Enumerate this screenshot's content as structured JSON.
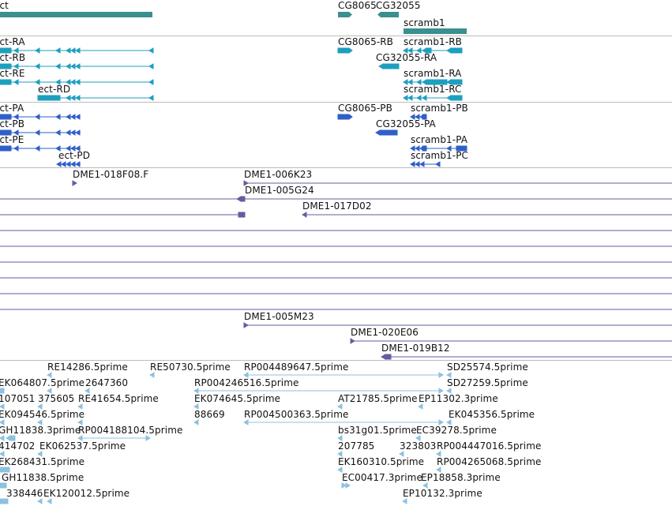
{
  "colors": {
    "gene": "#3a8f8f",
    "transcript1": "#1d9fbf",
    "transcript2": "#2f5fc8",
    "clone": "#6a5aa0",
    "est": "#8ec0e0",
    "divider": "#bcbcbc"
  },
  "tracks": {
    "genes": {
      "labels": [
        "ect",
        "CG8065",
        "CG32055",
        "scramb1"
      ],
      "features": [
        {
          "name": "ect",
          "start": -0.5,
          "end": 193,
          "strand": 0
        },
        {
          "name": "CG8065",
          "start": 428,
          "end": 446,
          "strand": 1
        },
        {
          "name": "CG32055",
          "start": 478,
          "end": 505,
          "strand": -1
        },
        {
          "name": "scramb1",
          "start": 511,
          "end": 591,
          "strand": 0
        }
      ]
    },
    "transcripts_set1": {
      "labels": [
        "ect-RA",
        "ect-RB",
        "ect-RE",
        "ect-RD",
        "CG8065-RB",
        "CG32055-RA",
        "scramb1-RB",
        "scramb1-RA",
        "scramb1-RC"
      ]
    },
    "transcripts_set2": {
      "labels": [
        "ect-PA",
        "ect-PB",
        "ect-PE",
        "ect-PD",
        "CG8065-PB",
        "CG32055-PA",
        "scramb1-PB",
        "scramb1-PA",
        "scramb1-PC"
      ]
    },
    "clones": {
      "labels": [
        "DME1-018F08.F",
        "DME1-006K23",
        "DME1-005G24",
        "DME1-017D02",
        "DME1-005M23",
        "DME1-020E06",
        "DME1-019B12"
      ]
    },
    "ests": {
      "labels": [
        "RE14286.5prime",
        "RE50730.5prime",
        "RP004489647.5prime",
        "SD25574.5prime",
        "EK064807.5prime",
        "2647360",
        "RP004246516.5prime",
        "SD27259.5prime",
        "107051",
        "375605",
        "RE41654.5prime",
        "EK074645.5prime",
        "AT21785.5prime",
        "EP11302.3prime",
        "EK094546.5prime",
        "88669",
        "RP004500363.5prime",
        "EK045356.5prime",
        "GH11838.3prime",
        "RP004188104.5prime",
        "bs31g01.5prime",
        "EC39278.5prime",
        "414702",
        "EK062537.5prime",
        "207785",
        "323803",
        "RP004447016.5prime",
        "EK268431.5prime",
        "EK160310.5prime",
        "RP004265068.5prime",
        "GH11838.5prime",
        "EC00417.3prime",
        "EP18858.3prime",
        "338446",
        "EK120012.5prime",
        "EP10132.3prime"
      ]
    }
  }
}
